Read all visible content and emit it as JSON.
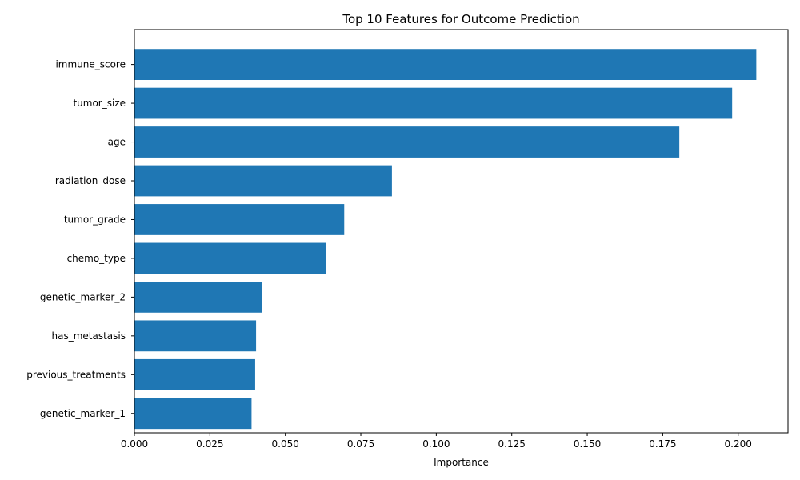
{
  "chart_data": {
    "type": "bar",
    "orientation": "horizontal",
    "title": "Top 10 Features for Outcome Prediction",
    "xlabel": "Importance",
    "ylabel": "",
    "xlim": [
      0,
      0.2165
    ],
    "x_ticks": [
      0.0,
      0.025,
      0.05,
      0.075,
      0.1,
      0.125,
      0.15,
      0.175,
      0.2
    ],
    "x_tick_labels": [
      "0.000",
      "0.025",
      "0.050",
      "0.075",
      "0.100",
      "0.125",
      "0.150",
      "0.175",
      "0.200"
    ],
    "categories": [
      "immune_score",
      "tumor_size",
      "age",
      "radiation_dose",
      "tumor_grade",
      "chemo_type",
      "genetic_marker_2",
      "has_metastasis",
      "previous_treatments",
      "genetic_marker_1"
    ],
    "values": [
      0.206,
      0.198,
      0.1805,
      0.0853,
      0.0695,
      0.0635,
      0.0422,
      0.0403,
      0.04,
      0.0388
    ],
    "bar_color": "#1f77b4",
    "grid": false,
    "legend": "none"
  }
}
